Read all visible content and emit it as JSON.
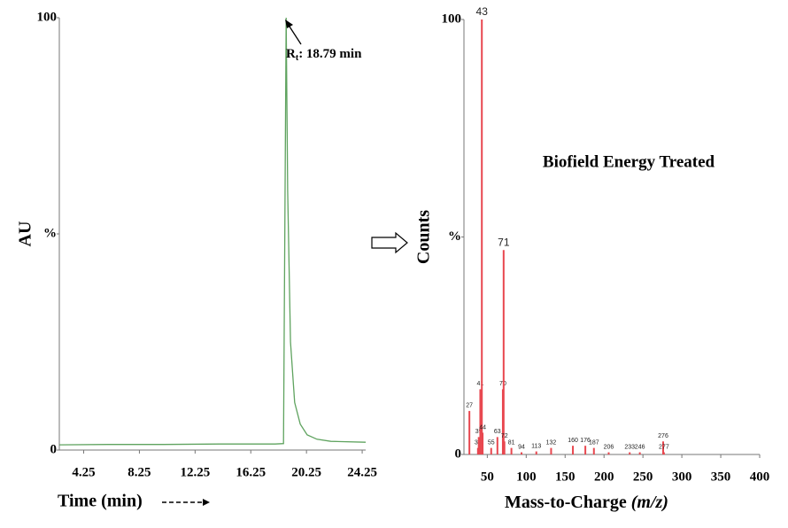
{
  "chart_data": [
    {
      "type": "line",
      "y_label": "AU",
      "x_label": "Time (min)",
      "annotation": [
        "R",
        "t",
        ": 18.79 min"
      ],
      "x": [
        2.5,
        6,
        10,
        14,
        18,
        18.6,
        18.79,
        18.9,
        19.1,
        19.4,
        19.8,
        20.3,
        21,
        22,
        24.5
      ],
      "values": [
        1.2,
        1.3,
        1.3,
        1.4,
        1.4,
        1.5,
        100,
        60,
        25,
        11,
        6,
        3.5,
        2.5,
        2,
        1.8
      ],
      "color": "#5fa35f",
      "xlim": [
        2.5,
        24.5
      ],
      "ylim": [
        0,
        100
      ],
      "xticks": [
        4.25,
        8.25,
        12.25,
        16.25,
        20.25,
        24.25
      ],
      "yticks": [
        0,
        {
          "value": 50,
          "label": "%"
        },
        100
      ]
    },
    {
      "type": "bar",
      "y_label": "Counts",
      "x_label": [
        "Mass-to-Charge ",
        "(m/z)"
      ],
      "annotation": "Biofield Energy Treated",
      "x": [
        27,
        38,
        39,
        41,
        43,
        44,
        55,
        63,
        70,
        71,
        72,
        81,
        94,
        113,
        132,
        160,
        176,
        187,
        206,
        233,
        246,
        276,
        277
      ],
      "values": [
        10,
        1.5,
        4,
        15,
        100,
        5,
        1.5,
        4,
        15,
        47,
        3,
        1.5,
        0.5,
        0.7,
        1.5,
        2,
        2,
        1.5,
        0.5,
        0.5,
        0.5,
        3,
        0.5
      ],
      "color": "#e8474f",
      "xlim": [
        20,
        400
      ],
      "ylim": [
        0,
        100
      ],
      "xticks": [
        50,
        100,
        150,
        200,
        250,
        300,
        350,
        400
      ],
      "yticks": [
        0,
        {
          "value": 50,
          "label": "%"
        },
        100
      ]
    }
  ]
}
